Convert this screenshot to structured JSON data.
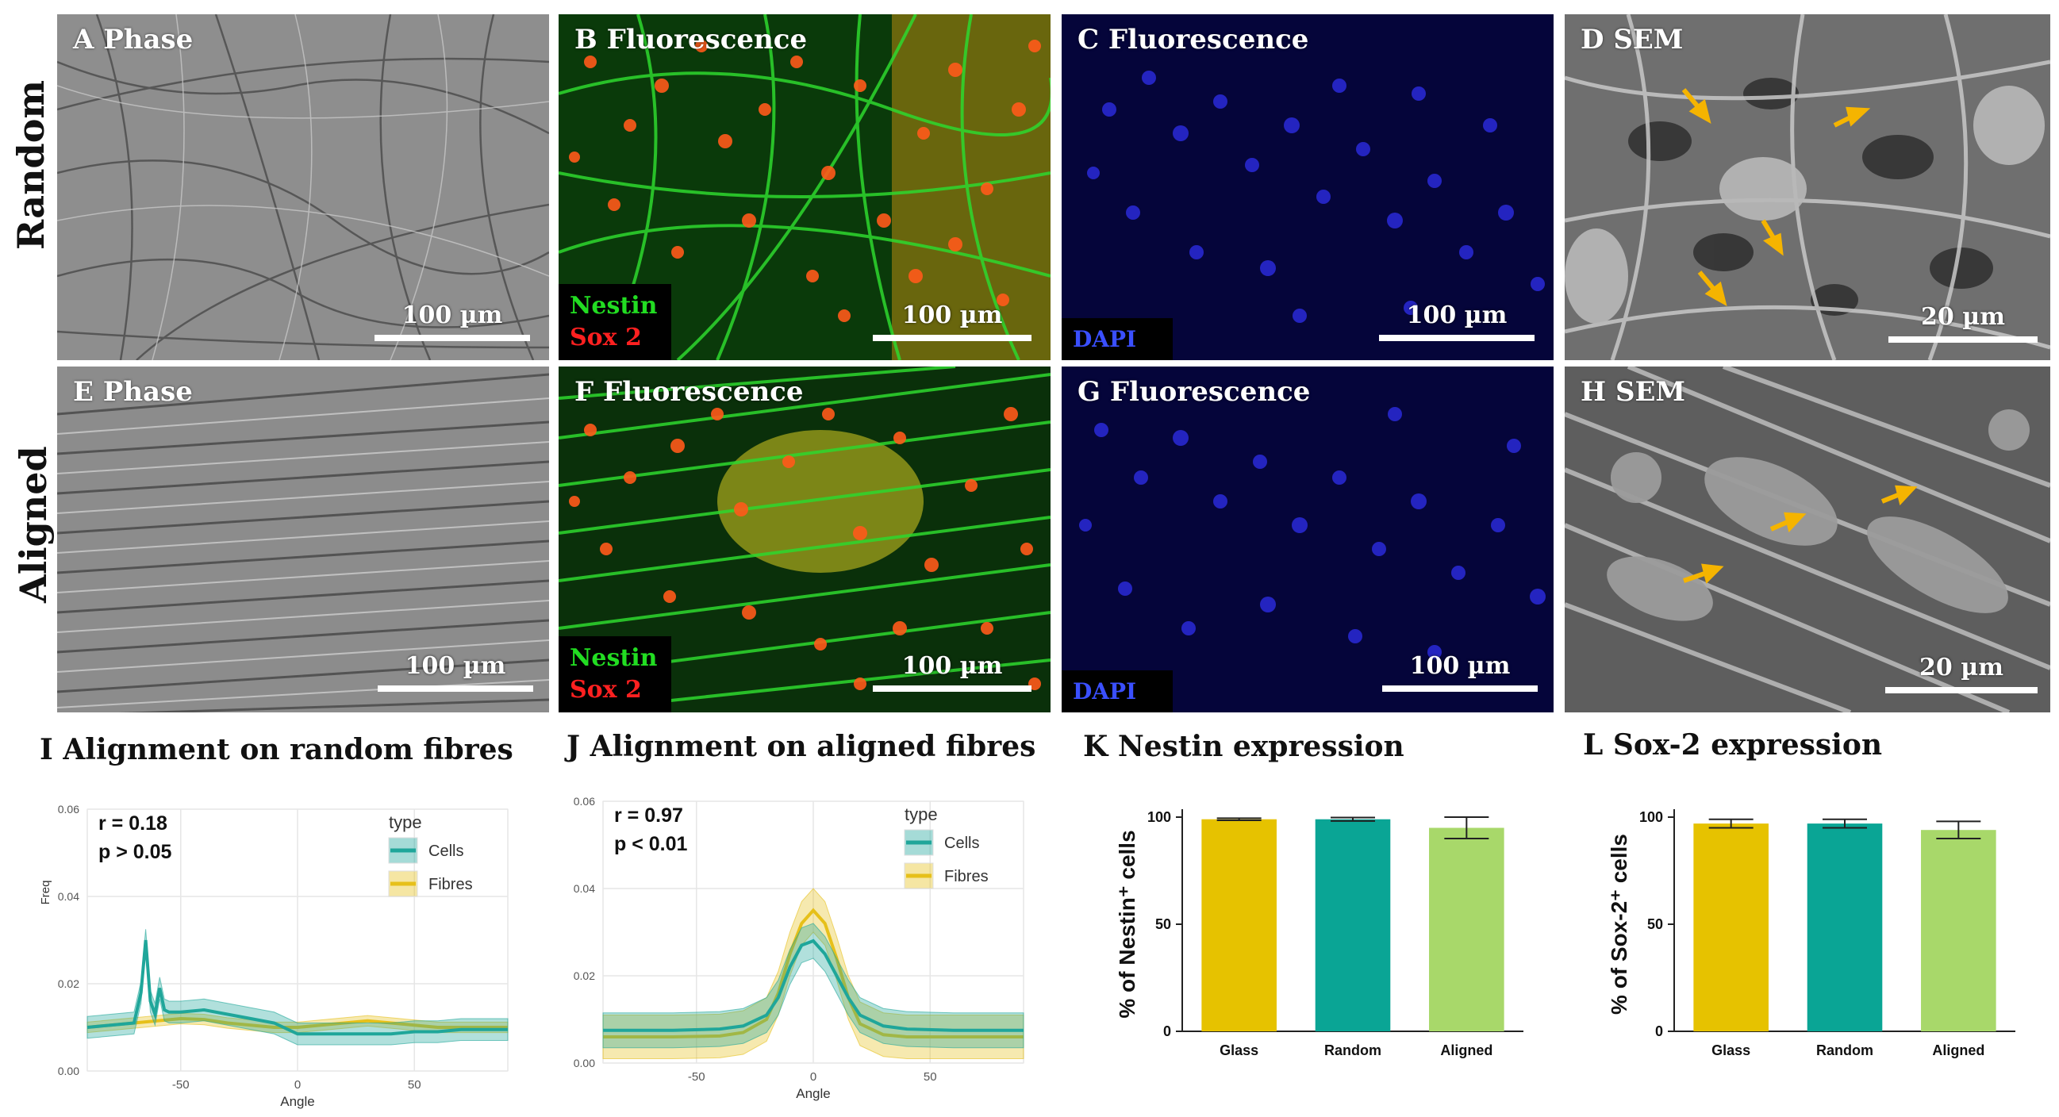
{
  "row_labels": {
    "top": "Random",
    "bottom": "Aligned"
  },
  "panels": {
    "A": {
      "title": "A Phase",
      "scale": "100 µm"
    },
    "B": {
      "title": "B Fluorescence",
      "scale": "100 µm",
      "legend1": "Nestin",
      "legend2": "Sox 2"
    },
    "C": {
      "title": "C Fluorescence",
      "scale": "100 µm",
      "legend": "DAPI"
    },
    "D": {
      "title": "D SEM",
      "scale": "20 µm"
    },
    "E": {
      "title": "E Phase",
      "scale": "100 µm"
    },
    "F": {
      "title": "F Fluorescence",
      "scale": "100 µm",
      "legend1": "Nestin",
      "legend2": "Sox 2"
    },
    "G": {
      "title": "G Fluorescence",
      "scale": "100 µm",
      "legend": "DAPI"
    },
    "H": {
      "title": "H SEM",
      "scale": "20 µm"
    }
  },
  "colors": {
    "cells": "#1fa69a",
    "fibres": "#e6c01a",
    "glass_bar": "#e6c200",
    "random_bar": "#0aa595",
    "aligned_bar": "#a8d86a",
    "nestin_text": "#22dd22",
    "sox2_text": "#ff2020",
    "dapi_text": "#3a4fff",
    "arrow": "#f5b400"
  },
  "chart_data": [
    {
      "id": "I",
      "type": "area",
      "title": "I Alignment on random fibres",
      "xlabel": "Angle",
      "ylabel": "Freq",
      "xlim": [
        -90,
        90
      ],
      "ylim": [
        0,
        0.06
      ],
      "xticks": [
        -50,
        0,
        50
      ],
      "yticks": [
        "0.00",
        "0.02",
        "0.04",
        "0.06"
      ],
      "annotation": [
        "r = 0.18",
        "p > 0.05"
      ],
      "legend_title": "type",
      "legend_position": "top-right",
      "grid": true,
      "series": [
        {
          "name": "Cells",
          "x": [
            -90,
            -80,
            -70,
            -67,
            -65,
            -63,
            -61,
            -59,
            -57,
            -55,
            -50,
            -40,
            -30,
            -20,
            -10,
            0,
            10,
            20,
            30,
            40,
            50,
            60,
            70,
            80,
            90
          ],
          "y": [
            0.01,
            0.0105,
            0.011,
            0.018,
            0.03,
            0.016,
            0.013,
            0.019,
            0.014,
            0.0135,
            0.0135,
            0.014,
            0.013,
            0.012,
            0.011,
            0.0085,
            0.0085,
            0.0085,
            0.0085,
            0.0085,
            0.009,
            0.009,
            0.0095,
            0.0095,
            0.0095
          ],
          "band": 0.0025
        },
        {
          "name": "Fibres",
          "x": [
            -90,
            -80,
            -70,
            -60,
            -50,
            -40,
            -30,
            -20,
            -10,
            0,
            10,
            20,
            30,
            40,
            50,
            60,
            70,
            80,
            90
          ],
          "y": [
            0.01,
            0.0105,
            0.011,
            0.0115,
            0.012,
            0.0118,
            0.011,
            0.0105,
            0.01,
            0.01,
            0.0105,
            0.011,
            0.0115,
            0.011,
            0.0105,
            0.01,
            0.01,
            0.01,
            0.01
          ],
          "band": 0.0012
        }
      ]
    },
    {
      "id": "J",
      "type": "area",
      "title": "J Alignment on aligned fibres",
      "xlabel": "Angle",
      "ylabel": "",
      "xlim": [
        -90,
        90
      ],
      "ylim": [
        0,
        0.06
      ],
      "xticks": [
        -50,
        0,
        50
      ],
      "yticks": [
        "0.00",
        "0.02",
        "0.04",
        "0.06"
      ],
      "annotation": [
        "r = 0.97",
        "p < 0.01"
      ],
      "legend_title": "type",
      "legend_position": "top-right",
      "grid": true,
      "series": [
        {
          "name": "Cells",
          "x": [
            -90,
            -60,
            -40,
            -30,
            -20,
            -15,
            -10,
            -5,
            0,
            5,
            10,
            15,
            20,
            30,
            40,
            60,
            90
          ],
          "y": [
            0.0075,
            0.0075,
            0.0078,
            0.0085,
            0.011,
            0.015,
            0.022,
            0.027,
            0.028,
            0.025,
            0.02,
            0.015,
            0.011,
            0.0085,
            0.0078,
            0.0075,
            0.0075
          ],
          "band": 0.004
        },
        {
          "name": "Fibres",
          "x": [
            -90,
            -60,
            -40,
            -30,
            -20,
            -15,
            -10,
            -5,
            0,
            5,
            10,
            15,
            20,
            30,
            40,
            60,
            90
          ],
          "y": [
            0.006,
            0.006,
            0.0062,
            0.007,
            0.01,
            0.016,
            0.025,
            0.032,
            0.035,
            0.032,
            0.024,
            0.015,
            0.009,
            0.0065,
            0.006,
            0.006,
            0.006
          ],
          "band": 0.005
        }
      ]
    },
    {
      "id": "K",
      "type": "bar",
      "title": "K Nestin expression",
      "ylabel": "% of Nestin⁺ cells",
      "categories": [
        "Glass",
        "Random",
        "Aligned"
      ],
      "values": [
        99,
        99,
        95
      ],
      "errors": [
        0.5,
        0.8,
        5
      ],
      "ylim": [
        0,
        100
      ],
      "yticks": [
        "0",
        "50",
        "100"
      ]
    },
    {
      "id": "L",
      "type": "bar",
      "title": "L Sox-2 expression",
      "ylabel": "% of Sox-2⁺ cells",
      "categories": [
        "Glass",
        "Random",
        "Aligned"
      ],
      "values": [
        97,
        97,
        94
      ],
      "errors": [
        2,
        2,
        4
      ],
      "ylim": [
        0,
        100
      ],
      "yticks": [
        "0",
        "50",
        "100"
      ]
    }
  ]
}
